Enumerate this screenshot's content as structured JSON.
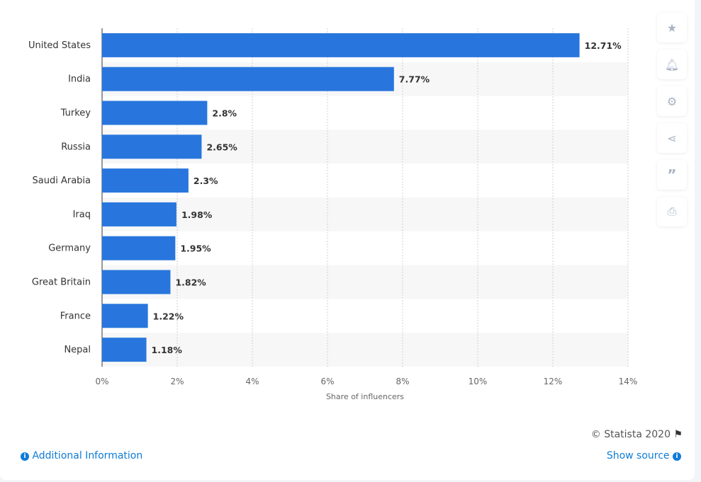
{
  "chart_data": {
    "type": "bar",
    "orientation": "horizontal",
    "categories": [
      "United States",
      "India",
      "Turkey",
      "Russia",
      "Saudi Arabia",
      "Iraq",
      "Germany",
      "Great Britain",
      "France",
      "Nepal"
    ],
    "values": [
      12.71,
      7.77,
      2.8,
      2.65,
      2.3,
      1.98,
      1.95,
      1.82,
      1.22,
      1.18
    ],
    "data_labels": [
      "12.71%",
      "7.77%",
      "2.8%",
      "2.65%",
      "2.3%",
      "1.98%",
      "1.95%",
      "1.82%",
      "1.22%",
      "1.18%"
    ],
    "xlabel": "Share of influencers",
    "ylabel": "",
    "xlim": [
      0,
      14
    ],
    "x_ticks": [
      "0%",
      "2%",
      "4%",
      "6%",
      "8%",
      "10%",
      "12%",
      "14%"
    ],
    "grid": true,
    "bar_color": "#2876dd"
  },
  "toolbar": {
    "icons": [
      "star-icon",
      "bell-icon",
      "gear-icon",
      "share-icon",
      "quote-icon",
      "print-icon"
    ]
  },
  "footer": {
    "credit": "© Statista 2020",
    "additional_info": "Additional Information",
    "show_source": "Show source"
  }
}
